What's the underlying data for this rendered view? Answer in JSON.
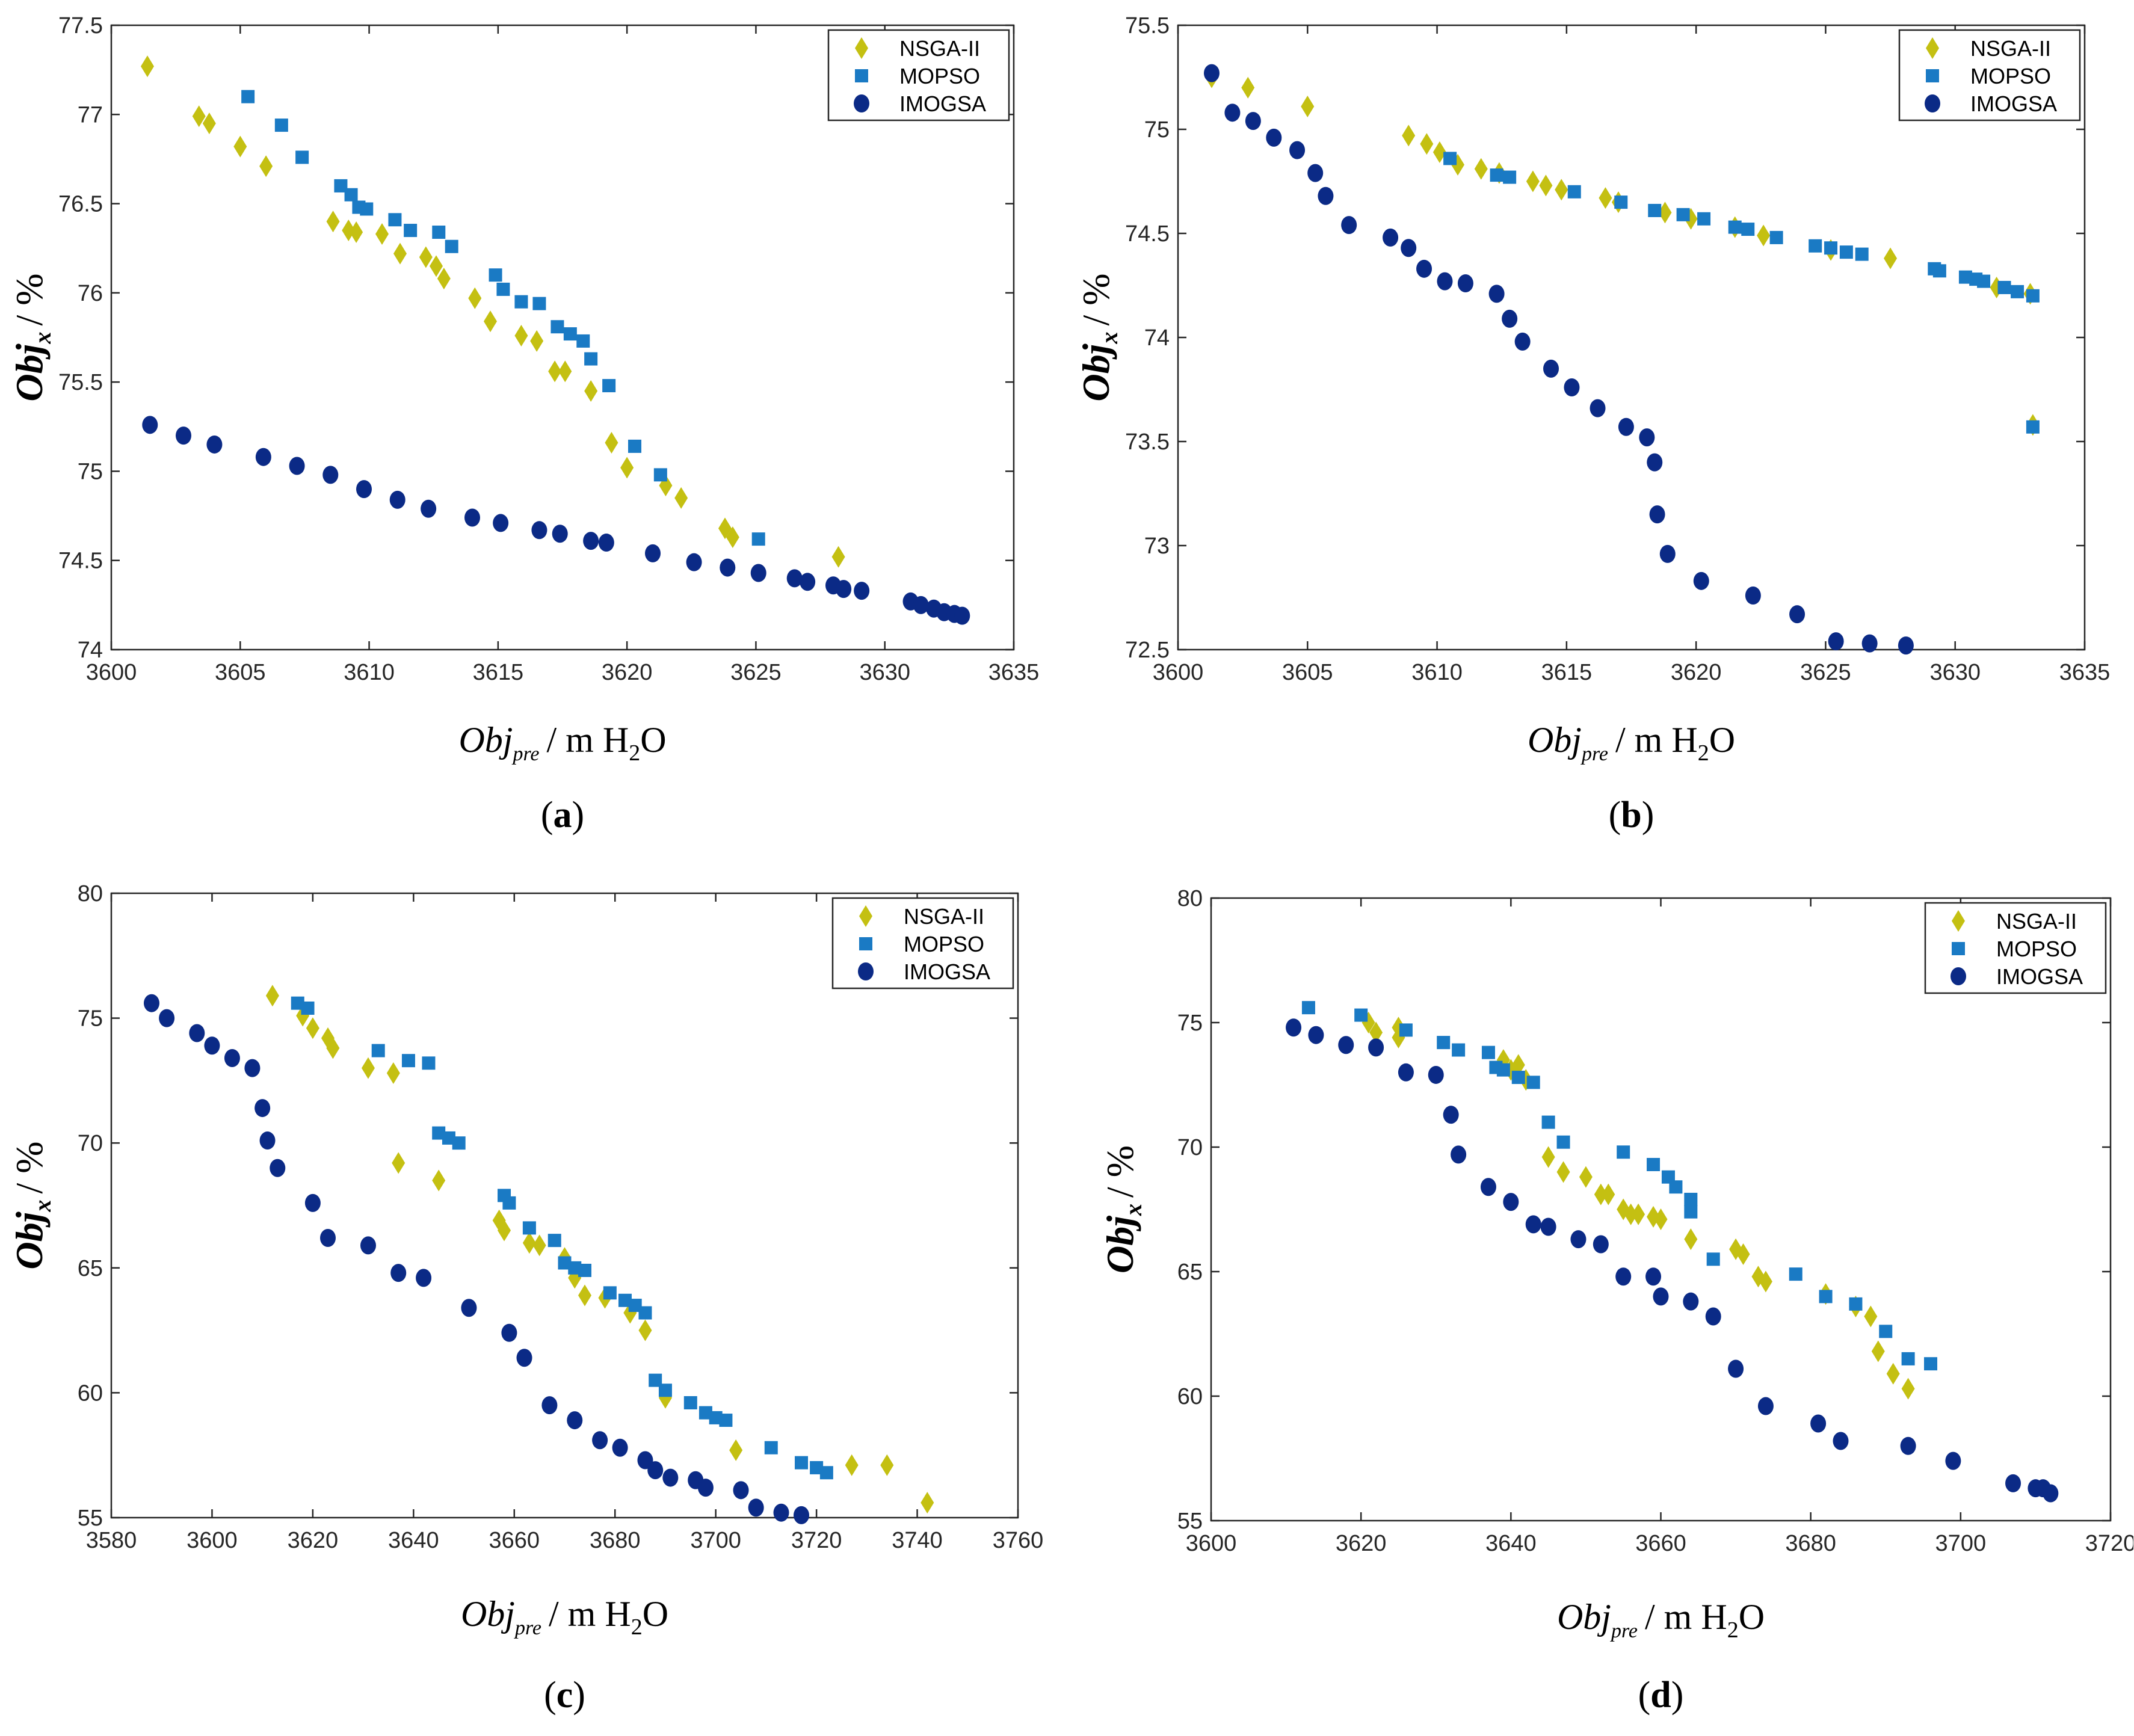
{
  "figure": {
    "colors": {
      "NSGA-II": "#c4c012",
      "MOPSO": "#1a7ac4",
      "IMOGSA": "#0b2a86"
    },
    "markers": {
      "NSGA-II": "diamond",
      "MOPSO": "square",
      "IMOGSA": "circle"
    }
  },
  "chart_data": [
    {
      "panel": "a",
      "type": "scatter",
      "xlabel": "Obj_pre / m H2O",
      "ylabel": "Obj_x / %",
      "xlim": [
        3600,
        3635
      ],
      "ylim": [
        74,
        77.5
      ],
      "xticks": [
        3600,
        3605,
        3610,
        3615,
        3620,
        3625,
        3630,
        3635
      ],
      "yticks": [
        74,
        74.5,
        75,
        75.5,
        76,
        76.5,
        77,
        77.5
      ],
      "legend_position": "top-right",
      "series": [
        {
          "name": "NSGA-II",
          "x": [
            3601.4,
            3603.4,
            3603.8,
            3605,
            3606,
            3608.6,
            3609.2,
            3609.5,
            3610.5,
            3611.2,
            3612.2,
            3612.6,
            3612.9,
            3614.1,
            3614.7,
            3615.9,
            3616.5,
            3617.2,
            3617.6,
            3618.6,
            3619.4,
            3620,
            3621.5,
            3622.1,
            3623.8,
            3624.1,
            3628.2
          ],
          "y": [
            77.27,
            76.99,
            76.95,
            76.82,
            76.71,
            76.4,
            76.35,
            76.34,
            76.33,
            76.22,
            76.2,
            76.15,
            76.08,
            75.97,
            75.84,
            75.76,
            75.73,
            75.56,
            75.56,
            75.45,
            75.16,
            75.02,
            74.92,
            74.85,
            74.68,
            74.63,
            74.52
          ]
        },
        {
          "name": "MOPSO",
          "x": [
            3605.3,
            3606.6,
            3607.4,
            3608.9,
            3609.3,
            3609.6,
            3609.9,
            3611,
            3611.6,
            3612.7,
            3613.2,
            3614.9,
            3615.2,
            3615.9,
            3616.6,
            3617.3,
            3617.8,
            3618.3,
            3618.6,
            3619.3,
            3620.3,
            3621.3,
            3625.1
          ],
          "y": [
            77.1,
            76.94,
            76.76,
            76.6,
            76.55,
            76.48,
            76.47,
            76.41,
            76.35,
            76.34,
            76.26,
            76.1,
            76.02,
            75.95,
            75.94,
            75.81,
            75.77,
            75.73,
            75.63,
            75.48,
            75.14,
            74.98,
            74.62
          ]
        },
        {
          "name": "IMOGSA",
          "x": [
            3601.5,
            3602.8,
            3604,
            3605.9,
            3607.2,
            3608.5,
            3609.8,
            3611.1,
            3612.3,
            3614,
            3615.1,
            3616.6,
            3617.4,
            3618.6,
            3619.2,
            3621,
            3622.6,
            3623.9,
            3625.1,
            3626.5,
            3627,
            3628,
            3628.4,
            3629.1,
            3631,
            3631.4,
            3631.9,
            3632.3,
            3632.7,
            3633
          ],
          "y": [
            75.26,
            75.2,
            75.15,
            75.08,
            75.03,
            74.98,
            74.9,
            74.84,
            74.79,
            74.74,
            74.71,
            74.67,
            74.65,
            74.61,
            74.6,
            74.54,
            74.49,
            74.46,
            74.43,
            74.4,
            74.38,
            74.36,
            74.34,
            74.33,
            74.27,
            74.25,
            74.23,
            74.21,
            74.2,
            74.19
          ]
        }
      ],
      "panel_label": "(a)"
    },
    {
      "panel": "b",
      "type": "scatter",
      "xlabel": "Obj_pre / m H2O",
      "ylabel": "Obj_x / %",
      "xlim": [
        3600,
        3635
      ],
      "ylim": [
        72.5,
        75.5
      ],
      "xticks": [
        3600,
        3605,
        3610,
        3615,
        3620,
        3625,
        3630,
        3635
      ],
      "yticks": [
        72.5,
        73,
        73.5,
        74,
        74.5,
        75,
        75.5
      ],
      "legend_position": "top-right",
      "series": [
        {
          "name": "NSGA-II",
          "x": [
            3601.3,
            3602.7,
            3605,
            3608.9,
            3609.6,
            3610.1,
            3610.8,
            3611.7,
            3612.4,
            3613.7,
            3614.2,
            3614.8,
            3616.5,
            3617,
            3618.8,
            3619.8,
            3621.5,
            3622.6,
            3625.2,
            3627.5,
            3631.6,
            3632.9,
            3633
          ],
          "y": [
            75.25,
            75.2,
            75.11,
            74.97,
            74.93,
            74.89,
            74.83,
            74.81,
            74.79,
            74.75,
            74.73,
            74.71,
            74.67,
            74.65,
            74.6,
            74.57,
            74.53,
            74.49,
            74.42,
            74.38,
            74.24,
            74.21,
            73.58
          ]
        },
        {
          "name": "MOPSO",
          "x": [
            3610.5,
            3612.3,
            3612.8,
            3615.3,
            3617.1,
            3618.4,
            3619.5,
            3620.3,
            3621.5,
            3622,
            3623.1,
            3624.6,
            3625.2,
            3625.8,
            3626.4,
            3629.2,
            3629.4,
            3630.4,
            3630.8,
            3631.1,
            3631.9,
            3632.4,
            3633,
            3633
          ],
          "y": [
            74.86,
            74.78,
            74.77,
            74.7,
            74.65,
            74.61,
            74.59,
            74.57,
            74.53,
            74.52,
            74.48,
            74.44,
            74.43,
            74.41,
            74.4,
            74.33,
            74.32,
            74.29,
            74.28,
            74.27,
            74.24,
            74.22,
            74.2,
            73.57
          ]
        },
        {
          "name": "IMOGSA",
          "x": [
            3601.3,
            3602.1,
            3602.9,
            3603.7,
            3604.6,
            3605.3,
            3605.7,
            3606.6,
            3608.2,
            3608.9,
            3609.5,
            3610.3,
            3611.1,
            3612.3,
            3612.8,
            3613.3,
            3614.4,
            3615.2,
            3616.2,
            3617.3,
            3618.1,
            3618.4,
            3618.5,
            3618.9,
            3620.2,
            3622.2,
            3623.9,
            3625.4,
            3626.7,
            3628.1
          ],
          "y": [
            75.27,
            75.08,
            75.04,
            74.96,
            74.9,
            74.79,
            74.68,
            74.54,
            74.48,
            74.43,
            74.33,
            74.27,
            74.26,
            74.21,
            74.09,
            73.98,
            73.85,
            73.76,
            73.66,
            73.57,
            73.52,
            73.4,
            73.15,
            72.96,
            72.83,
            72.76,
            72.67,
            72.54,
            72.53,
            72.52
          ]
        }
      ],
      "panel_label": "(b)"
    },
    {
      "panel": "c",
      "type": "scatter",
      "xlabel": "Obj_pre / m H2O",
      "ylabel": "Obj_x / %",
      "xlim": [
        3580,
        3760
      ],
      "ylim": [
        55,
        80
      ],
      "xticks": [
        3580,
        3600,
        3620,
        3640,
        3660,
        3680,
        3700,
        3720,
        3740,
        3760
      ],
      "yticks": [
        55,
        60,
        65,
        70,
        75,
        80
      ],
      "legend_position": "top-right",
      "series": [
        {
          "name": "NSGA-II",
          "x": [
            3612,
            3618,
            3620,
            3623,
            3624,
            3631,
            3636,
            3637,
            3645,
            3657,
            3658,
            3663,
            3665,
            3670,
            3672,
            3674,
            3678,
            3683,
            3686,
            3690,
            3704,
            3727,
            3734,
            3742
          ],
          "y": [
            75.9,
            75.1,
            74.6,
            74.2,
            73.8,
            73,
            72.8,
            69.2,
            68.5,
            66.9,
            66.5,
            66,
            65.9,
            65.4,
            64.6,
            63.9,
            63.8,
            63.2,
            62.5,
            59.8,
            57.7,
            57.1,
            57.1,
            55.6
          ]
        },
        {
          "name": "MOPSO",
          "x": [
            3617,
            3619,
            3633,
            3639,
            3643,
            3645,
            3647,
            3649,
            3658,
            3659,
            3663,
            3668,
            3670,
            3672,
            3674,
            3679,
            3682,
            3684,
            3686,
            3688,
            3690,
            3695,
            3698,
            3700,
            3702,
            3711,
            3717,
            3720,
            3722
          ],
          "y": [
            75.6,
            75.4,
            73.7,
            73.3,
            73.2,
            70.4,
            70.2,
            70,
            67.9,
            67.6,
            66.6,
            66.1,
            65.2,
            65,
            64.9,
            64,
            63.7,
            63.5,
            63.2,
            60.5,
            60.1,
            59.6,
            59.2,
            59,
            58.9,
            57.8,
            57.2,
            57,
            56.8
          ]
        },
        {
          "name": "IMOGSA",
          "x": [
            3588,
            3591,
            3597,
            3600,
            3604,
            3608,
            3610,
            3611,
            3613,
            3620,
            3623,
            3631,
            3637,
            3642,
            3651,
            3659,
            3662,
            3667,
            3672,
            3677,
            3681,
            3686,
            3688,
            3691,
            3696,
            3698,
            3705,
            3708,
            3713,
            3717
          ],
          "y": [
            75.6,
            75,
            74.4,
            73.9,
            73.4,
            73,
            71.4,
            70.1,
            69,
            67.6,
            66.2,
            65.9,
            64.8,
            64.6,
            63.4,
            62.4,
            61.4,
            59.5,
            58.9,
            58.1,
            57.8,
            57.3,
            56.9,
            56.6,
            56.5,
            56.2,
            56.1,
            55.4,
            55.2,
            55.1
          ]
        }
      ],
      "panel_label": "(c)"
    },
    {
      "panel": "d",
      "type": "scatter",
      "xlabel": "Obj_pre / m H2O",
      "ylabel": "Obj_x / %",
      "xlim": [
        3600,
        3720
      ],
      "ylim": [
        55,
        80
      ],
      "xticks": [
        3600,
        3620,
        3640,
        3660,
        3680,
        3700,
        3720
      ],
      "yticks": [
        55,
        60,
        65,
        70,
        75,
        80
      ],
      "legend_position": "top-right",
      "series": [
        {
          "name": "NSGA-II",
          "x": [
            3621,
            3622,
            3625,
            3625,
            3639,
            3640,
            3641,
            3642,
            3645,
            3647,
            3650,
            3652,
            3653,
            3655,
            3656,
            3657,
            3659,
            3660,
            3664,
            3670,
            3671,
            3673,
            3674,
            3682,
            3686,
            3688,
            3689,
            3691,
            3693
          ],
          "y": [
            75,
            74.6,
            74.8,
            74.4,
            73.5,
            73.1,
            73.3,
            72.7,
            69.6,
            69,
            68.8,
            68.1,
            68.1,
            67.5,
            67.3,
            67.3,
            67.2,
            67.1,
            66.3,
            65.9,
            65.7,
            64.8,
            64.6,
            64.1,
            63.6,
            63.2,
            61.8,
            60.9,
            60.3
          ]
        },
        {
          "name": "MOPSO",
          "x": [
            3613,
            3620,
            3626,
            3631,
            3633,
            3637,
            3638,
            3639,
            3641,
            3643,
            3645,
            3647,
            3655,
            3659,
            3661,
            3662,
            3664,
            3664,
            3667,
            3678,
            3682,
            3686,
            3690,
            3693,
            3696
          ],
          "y": [
            75.6,
            75.3,
            74.7,
            74.2,
            73.9,
            73.8,
            73.2,
            73.1,
            72.8,
            72.6,
            71,
            70.2,
            69.8,
            69.3,
            68.8,
            68.4,
            67.9,
            67.4,
            65.5,
            64.9,
            64,
            63.7,
            62.6,
            61.5,
            61.3
          ]
        },
        {
          "name": "IMOGSA",
          "x": [
            3611,
            3614,
            3618,
            3622,
            3626,
            3630,
            3632,
            3633,
            3637,
            3640,
            3643,
            3645,
            3649,
            3652,
            3655,
            3659,
            3660,
            3664,
            3667,
            3670,
            3674,
            3681,
            3684,
            3693,
            3699,
            3707,
            3710,
            3711,
            3712
          ],
          "y": [
            74.8,
            74.5,
            74.1,
            74,
            73,
            72.9,
            71.3,
            69.7,
            68.4,
            67.8,
            66.9,
            66.8,
            66.3,
            66.1,
            64.8,
            64.8,
            64,
            63.8,
            63.2,
            61.1,
            59.6,
            58.9,
            58.2,
            58,
            57.4,
            56.5,
            56.3,
            56.3,
            56.1
          ]
        }
      ],
      "panel_label": "(d)"
    }
  ]
}
